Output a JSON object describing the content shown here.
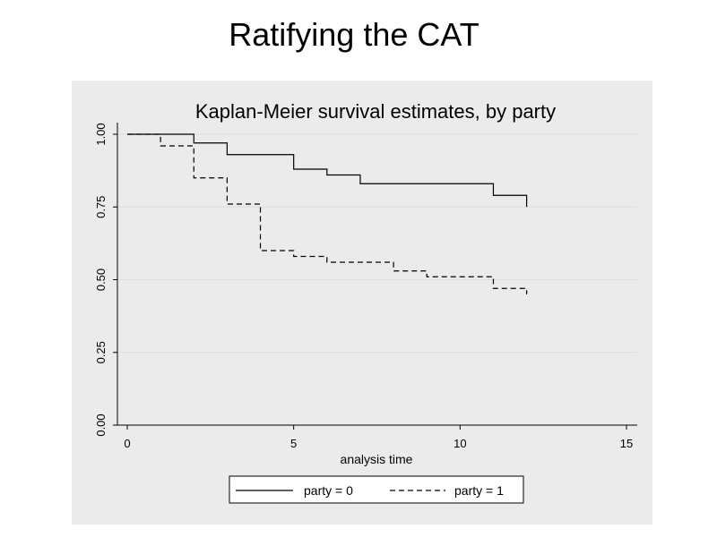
{
  "page": {
    "title": "Ratifying the CAT"
  },
  "chart_data": {
    "type": "line",
    "title": "Kaplan-Meier survival estimates, by party",
    "xlabel": "analysis time",
    "ylabel": "",
    "xlim": [
      0,
      15
    ],
    "ylim": [
      0,
      1
    ],
    "x_ticks": [
      0,
      5,
      10,
      15
    ],
    "x_tick_labels": [
      "0",
      "5",
      "10",
      "15"
    ],
    "y_ticks": [
      0,
      0.25,
      0.5,
      0.75,
      1
    ],
    "y_tick_labels": [
      "0.00",
      "0.25",
      "0.50",
      "0.75",
      "1.00"
    ],
    "step": true,
    "grid": true,
    "legend": "bottom",
    "series": [
      {
        "name": "party = 0",
        "style": "solid",
        "color": "#000000",
        "x": [
          0,
          2,
          3,
          5,
          6,
          7,
          11,
          12
        ],
        "y": [
          1.0,
          0.97,
          0.93,
          0.88,
          0.86,
          0.83,
          0.79,
          0.75
        ]
      },
      {
        "name": "party = 1",
        "style": "dashed",
        "color": "#000000",
        "x": [
          0,
          1,
          2,
          3,
          4,
          5,
          6,
          8,
          9,
          11,
          12
        ],
        "y": [
          1.0,
          0.96,
          0.85,
          0.76,
          0.6,
          0.58,
          0.56,
          0.53,
          0.51,
          0.47,
          0.45
        ]
      }
    ]
  }
}
